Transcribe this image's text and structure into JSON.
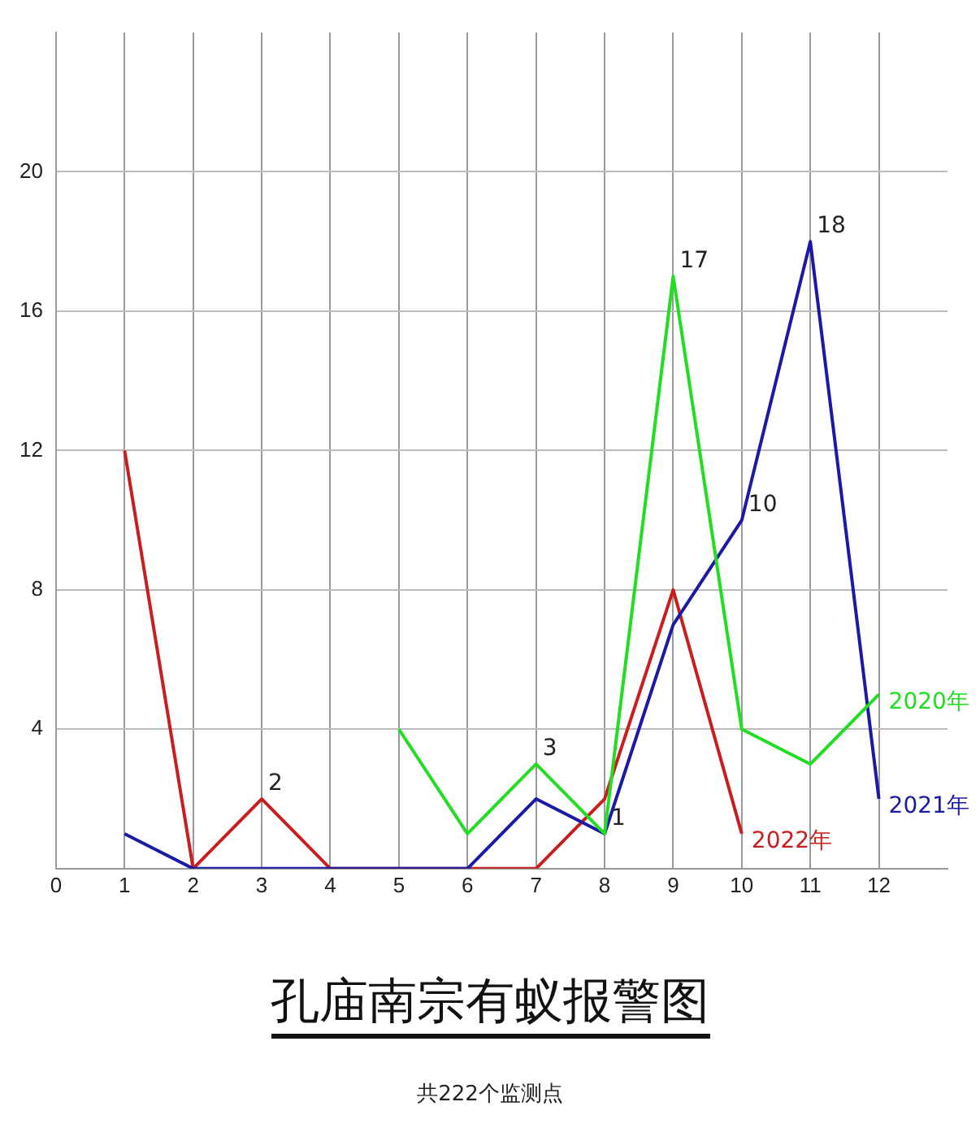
{
  "chart_data": {
    "type": "line",
    "title": "孔庙南宗有蚁报警图",
    "subtitle": "共222个监测点",
    "series": [
      {
        "name": "2020年",
        "color": "#22dd22",
        "x": [
          5,
          6,
          7,
          8,
          9,
          10,
          11,
          12
        ],
        "values": [
          4,
          1,
          3,
          1,
          17,
          4,
          3,
          5
        ]
      },
      {
        "name": "2021年",
        "color": "#1a1aa6",
        "x": [
          1,
          2,
          3,
          4,
          5,
          6,
          7,
          8,
          9,
          10,
          11,
          12
        ],
        "values": [
          1,
          0,
          0,
          0,
          0,
          0,
          2,
          1,
          7,
          10,
          18,
          2
        ]
      },
      {
        "name": "2022年",
        "color": "#c81e1e",
        "x": [
          1,
          2,
          3,
          4,
          5,
          6,
          7,
          8,
          9,
          10
        ],
        "values": [
          12,
          0,
          2,
          0,
          0,
          0,
          0,
          2,
          8,
          1
        ]
      }
    ],
    "annotations": [
      {
        "text": "2",
        "x": 3,
        "y": 2
      },
      {
        "text": "3",
        "x": 7,
        "y": 3
      },
      {
        "text": "1",
        "x": 8,
        "y": 1
      },
      {
        "text": "17",
        "x": 9,
        "y": 17
      },
      {
        "text": "10",
        "x": 10,
        "y": 10
      },
      {
        "text": "18",
        "x": 11,
        "y": 18
      }
    ],
    "xlim": [
      0,
      13
    ],
    "xticks": [
      0,
      1,
      2,
      3,
      4,
      5,
      6,
      7,
      8,
      9,
      10,
      11,
      12
    ],
    "ylim": [
      0,
      24
    ],
    "yticks": [
      4,
      8,
      12,
      16,
      20
    ],
    "grid": true,
    "legend": false,
    "marker": "none",
    "line_style": "solid"
  }
}
